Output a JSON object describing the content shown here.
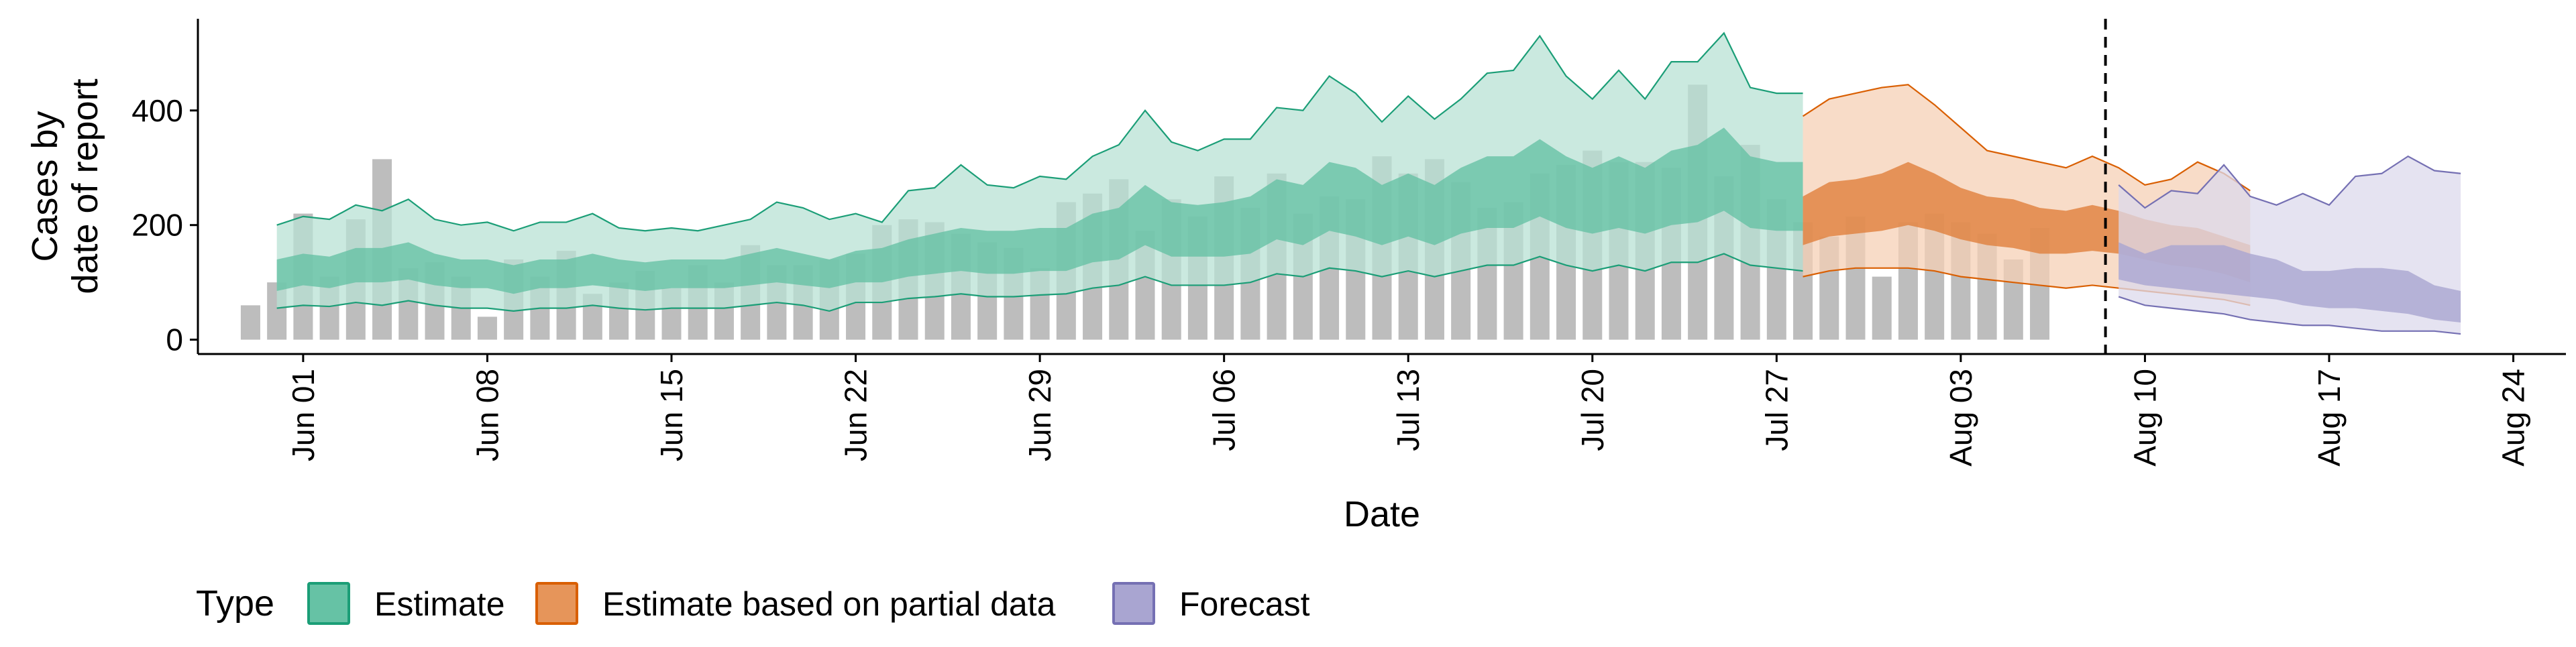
{
  "chart_data": {
    "type": "area",
    "title": "",
    "xlabel": "Date",
    "ylabel_lines": [
      "Cases by",
      "date of report"
    ],
    "x_start": "2020-05-30",
    "x_end": "2020-08-22",
    "xlim": [
      "2020-05-28",
      "2020-08-26"
    ],
    "ylim": [
      -25,
      560
    ],
    "y_ticks": [
      0,
      200,
      400
    ],
    "x_ticks": [
      {
        "date": "2020-06-01",
        "label": "Jun 01"
      },
      {
        "date": "2020-06-08",
        "label": "Jun 08"
      },
      {
        "date": "2020-06-15",
        "label": "Jun 15"
      },
      {
        "date": "2020-06-22",
        "label": "Jun 22"
      },
      {
        "date": "2020-06-29",
        "label": "Jun 29"
      },
      {
        "date": "2020-07-06",
        "label": "Jul 06"
      },
      {
        "date": "2020-07-13",
        "label": "Jul 13"
      },
      {
        "date": "2020-07-20",
        "label": "Jul 20"
      },
      {
        "date": "2020-07-27",
        "label": "Jul 27"
      },
      {
        "date": "2020-08-03",
        "label": "Aug 03"
      },
      {
        "date": "2020-08-10",
        "label": "Aug 10"
      },
      {
        "date": "2020-08-17",
        "label": "Aug 17"
      },
      {
        "date": "2020-08-24",
        "label": "Aug 24"
      }
    ],
    "vline_date": "2020-08-08",
    "bars": {
      "start": "2020-05-30",
      "color": "#bdbdbd",
      "values": [
        60,
        100,
        220,
        110,
        210,
        315,
        125,
        135,
        110,
        40,
        140,
        110,
        155,
        80,
        100,
        120,
        90,
        130,
        100,
        165,
        130,
        130,
        140,
        150,
        200,
        210,
        205,
        185,
        170,
        160,
        125,
        240,
        255,
        280,
        190,
        245,
        215,
        285,
        230,
        290,
        220,
        250,
        245,
        320,
        290,
        315,
        275,
        230,
        240,
        290,
        305,
        330,
        310,
        310,
        300,
        445,
        285,
        340,
        245,
        205,
        180,
        215,
        110,
        205,
        220,
        205,
        185,
        140,
        195
      ]
    },
    "series": [
      {
        "name": "Estimate",
        "color": "#1b9e77",
        "fill": "#66c2a5",
        "outer_fill": "#b8e1d4",
        "start": "2020-05-31",
        "upper90": [
          200,
          215,
          210,
          235,
          225,
          245,
          210,
          200,
          205,
          190,
          205,
          205,
          220,
          195,
          190,
          195,
          190,
          200,
          210,
          240,
          230,
          210,
          220,
          205,
          260,
          265,
          305,
          270,
          265,
          285,
          280,
          320,
          340,
          400,
          345,
          330,
          350,
          350,
          405,
          400,
          460,
          430,
          380,
          425,
          385,
          420,
          465,
          470,
          530,
          460,
          420,
          470,
          420,
          485,
          485,
          535,
          440,
          430,
          430
        ],
        "upper50": [
          140,
          150,
          145,
          160,
          160,
          170,
          150,
          140,
          140,
          130,
          140,
          140,
          150,
          140,
          135,
          140,
          140,
          140,
          150,
          160,
          150,
          140,
          155,
          160,
          175,
          185,
          195,
          190,
          190,
          195,
          195,
          220,
          230,
          270,
          240,
          235,
          240,
          250,
          280,
          270,
          310,
          300,
          270,
          290,
          270,
          300,
          320,
          320,
          350,
          320,
          300,
          320,
          300,
          330,
          340,
          370,
          320,
          310,
          310
        ],
        "lower50": [
          85,
          95,
          90,
          100,
          100,
          105,
          95,
          90,
          90,
          80,
          90,
          90,
          95,
          90,
          85,
          90,
          90,
          90,
          95,
          100,
          95,
          90,
          100,
          100,
          110,
          115,
          120,
          115,
          115,
          120,
          120,
          135,
          140,
          165,
          145,
          145,
          145,
          150,
          175,
          165,
          190,
          180,
          165,
          180,
          165,
          185,
          195,
          195,
          215,
          195,
          185,
          195,
          185,
          200,
          205,
          225,
          195,
          190,
          190
        ],
        "lower90": [
          55,
          60,
          58,
          65,
          60,
          68,
          60,
          55,
          55,
          50,
          55,
          55,
          60,
          55,
          52,
          55,
          55,
          55,
          60,
          65,
          60,
          50,
          65,
          65,
          72,
          75,
          80,
          75,
          75,
          78,
          80,
          90,
          95,
          110,
          95,
          95,
          95,
          100,
          115,
          110,
          125,
          120,
          110,
          120,
          110,
          120,
          130,
          130,
          145,
          130,
          120,
          130,
          120,
          135,
          135,
          150,
          130,
          125,
          120
        ]
      },
      {
        "name": "Estimate based on partial data",
        "color": "#d95f02",
        "fill": "#e0803c",
        "outer_fill": "#f5d0b5",
        "start": "2020-07-28",
        "upper90": [
          390,
          420,
          430,
          440,
          445,
          410,
          370,
          330,
          320,
          310,
          300,
          320,
          300,
          270,
          280,
          310,
          290,
          260
        ],
        "upper50": [
          250,
          275,
          280,
          290,
          310,
          290,
          265,
          250,
          245,
          230,
          225,
          235,
          225,
          210,
          200,
          195,
          180,
          165
        ],
        "lower50": [
          165,
          180,
          185,
          190,
          200,
          190,
          175,
          165,
          160,
          150,
          150,
          155,
          150,
          140,
          130,
          125,
          115,
          100
        ],
        "lower90": [
          110,
          120,
          125,
          125,
          125,
          120,
          110,
          105,
          100,
          95,
          90,
          95,
          90,
          85,
          80,
          75,
          70,
          60
        ]
      },
      {
        "name": "Forecast",
        "color": "#7570b3",
        "fill": "#a9a5d1",
        "outer_fill": "#dcdaec",
        "start": "2020-08-09",
        "upper90": [
          270,
          230,
          260,
          255,
          305,
          250,
          235,
          255,
          235,
          285,
          290,
          320,
          295,
          290
        ],
        "upper50": [
          170,
          150,
          165,
          165,
          165,
          150,
          140,
          120,
          120,
          125,
          125,
          120,
          95,
          85
        ],
        "lower50": [
          105,
          95,
          90,
          85,
          80,
          75,
          70,
          60,
          55,
          55,
          50,
          45,
          35,
          30
        ],
        "lower90": [
          75,
          60,
          55,
          50,
          45,
          35,
          30,
          25,
          25,
          20,
          15,
          15,
          15,
          10
        ]
      }
    ],
    "legend": {
      "title": "Type",
      "position": "bottom-left",
      "items": [
        {
          "label": "Estimate",
          "fill": "#66c2a5",
          "stroke": "#1b9e77"
        },
        {
          "label": "Estimate based on partial data",
          "fill": "#e6955a",
          "stroke": "#d95f02"
        },
        {
          "label": "Forecast",
          "fill": "#a9a5d1",
          "stroke": "#7570b3"
        }
      ]
    }
  }
}
